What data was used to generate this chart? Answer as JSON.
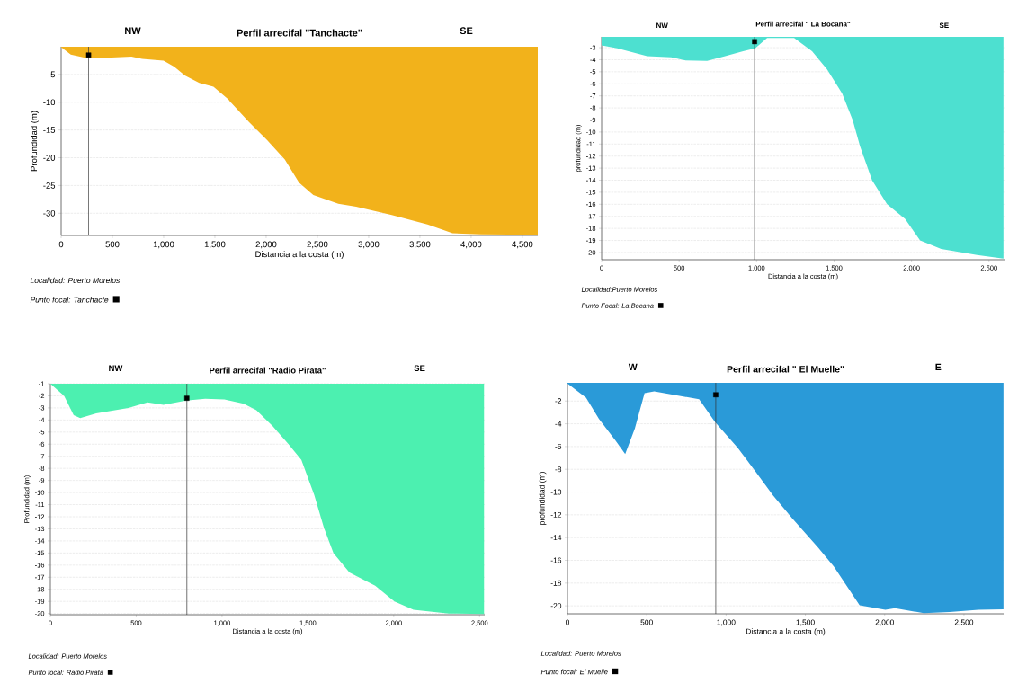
{
  "chart_data": [
    {
      "type": "area",
      "title": "Perfil arrecifal \"Tanchacte\"",
      "xlabel": "Distancia a la costa (m)",
      "ylabel": "Profundidad (m)",
      "annotations": [
        "NW",
        "SE",
        "Localidad: Puerto Morelos"
      ],
      "xlim": [
        0,
        4650
      ],
      "ylim": [
        -34,
        0
      ],
      "grid": "y",
      "legend": "bottom left",
      "xticks": [
        0,
        500,
        {
          "value": 1000,
          "label": "1,000"
        },
        {
          "value": 1500,
          "label": "1,500"
        },
        {
          "value": 2000,
          "label": "2,000"
        },
        {
          "value": 2500,
          "label": "2,500"
        },
        {
          "value": 3000,
          "label": "3,000"
        },
        {
          "value": 3500,
          "label": "3,500"
        },
        {
          "value": 4000,
          "label": "4,000"
        },
        {
          "value": 4500,
          "label": "4,500"
        }
      ],
      "yticks": [
        -5,
        -10,
        -15,
        -20,
        -25,
        -30
      ],
      "ref_lines": [
        {
          "axis": "x",
          "value": 268
        }
      ],
      "series": [
        {
          "color": "#f2b21b",
          "x": [
            0,
            94,
            233,
            442,
            686,
            790,
            999,
            1103,
            1207,
            1347,
            1486,
            1625,
            1834,
            2008,
            2182,
            2321,
            2460,
            2704,
            2878,
            3226,
            3574,
            3818,
            4096,
            4650
          ],
          "values": [
            -0.1,
            -1.4,
            -2.0,
            -2.0,
            -1.8,
            -2.2,
            -2.5,
            -3.6,
            -5.2,
            -6.5,
            -7.2,
            -9.4,
            -13.6,
            -16.8,
            -20.3,
            -24.5,
            -26.7,
            -28.3,
            -28.8,
            -30.3,
            -32.0,
            -33.6,
            -33.8,
            -33.9
          ]
        },
        {
          "type": "scatter",
          "name": "Punto focal: Tanchacte",
          "color": "#000000",
          "marker": "square",
          "x": [
            268
          ],
          "values": [
            -1.5
          ]
        }
      ]
    },
    {
      "type": "area",
      "title": "Perfil arrecifal \" La Bocana\"",
      "xlabel": "Distancia a la costa (m)",
      "ylabel": "profundidad (m)",
      "annotations": [
        "NW",
        "SE",
        "Localidad:Puerto Morelos"
      ],
      "xlim": [
        0,
        2600
      ],
      "ylim": [
        -20.6,
        -2.1
      ],
      "grid": "y",
      "legend": "bottom left",
      "xticks": [
        0,
        500,
        {
          "value": 1000,
          "label": "1,000"
        },
        {
          "value": 1500,
          "label": "1,500"
        },
        {
          "value": 2000,
          "label": "2,000"
        },
        {
          "value": 2500,
          "label": "2,500"
        }
      ],
      "yticks": [
        -3,
        -4,
        -5,
        -6,
        -7,
        -8,
        -9,
        -10,
        -11,
        -12,
        -13,
        -14,
        -15,
        -16,
        -17,
        -18,
        -19,
        -20
      ],
      "ref_lines": [
        {
          "axis": "x",
          "value": 987
        }
      ],
      "series": [
        {
          "color": "#4de0d0",
          "x": [
            0,
            101,
            294,
            449,
            542,
            681,
            797,
            913,
            991,
            1068,
            1107,
            1145,
            1242,
            1358,
            1455,
            1552,
            1620,
            1668,
            1745,
            1842,
            1958,
            2055,
            2191,
            2423,
            2593
          ],
          "values": [
            -2.8,
            -3.05,
            -3.7,
            -3.8,
            -4.05,
            -4.1,
            -3.7,
            -3.3,
            -3.05,
            -2.2,
            null,
            null,
            -2.2,
            -3.3,
            -4.8,
            -6.8,
            -9.0,
            -11.2,
            -14.0,
            -16.0,
            -17.2,
            -19.0,
            -19.7,
            -20.2,
            -20.5
          ]
        },
        {
          "type": "scatter",
          "name": "Punto Focal: La Bocana",
          "color": "#000000",
          "marker": "square",
          "x": [
            987
          ],
          "values": [
            -2.5
          ]
        }
      ]
    },
    {
      "type": "area",
      "title": "Perfil arrecifal \"Radio Pirata\"",
      "xlabel": "Distancia a la costa (m)",
      "ylabel": "Profundidad (m)",
      "annotations": [
        "NW",
        "SE",
        "Localidad: Puerto Morelos"
      ],
      "xlim": [
        0,
        2530
      ],
      "ylim": [
        -20.1,
        -1
      ],
      "grid": "y",
      "legend": "bottom left",
      "xticks": [
        0,
        500,
        {
          "value": 1000,
          "label": "1,000"
        },
        {
          "value": 1500,
          "label": "1,500"
        },
        {
          "value": 2000,
          "label": "2,000"
        },
        {
          "value": 2500,
          "label": "2,500"
        }
      ],
      "yticks": [
        -1,
        -2,
        -3,
        -4,
        -5,
        -6,
        -7,
        -8,
        -9,
        -10,
        -11,
        -12,
        -13,
        -14,
        -15,
        -16,
        -17,
        -18,
        -19,
        -20
      ],
      "ref_lines": [
        {
          "axis": "x",
          "value": 795
        }
      ],
      "series": [
        {
          "color": "#4cf0b0",
          "x": [
            0,
            80,
            136,
            174,
            267,
            454,
            566,
            659,
            790,
            902,
            1014,
            1126,
            1200,
            1294,
            1387,
            1462,
            1537,
            1593,
            1649,
            1742,
            1892,
            2004,
            2115,
            2321,
            2526
          ],
          "values": [
            -1.0,
            -2.0,
            -3.6,
            -3.85,
            -3.45,
            -3.0,
            -2.55,
            -2.75,
            -2.4,
            -2.25,
            -2.3,
            -2.65,
            -3.2,
            -4.5,
            -6.0,
            -7.3,
            -10.2,
            -12.9,
            -15.0,
            -16.6,
            -17.7,
            -19.0,
            -19.7,
            -20.0,
            -20.05
          ]
        },
        {
          "type": "scatter",
          "name": "Punto focal: Radio Pirata",
          "color": "#000000",
          "marker": "square",
          "x": [
            795
          ],
          "values": [
            -2.2
          ]
        }
      ]
    },
    {
      "type": "area",
      "title": "Perfil arrecifal \" El Muelle\"",
      "xlabel": "Distancia a la costa (m)",
      "ylabel": "profundidad (m)",
      "annotations": [
        "W",
        "E",
        "Localidad: Puerto Morelos"
      ],
      "xlim": [
        0,
        2750
      ],
      "ylim": [
        -20.7,
        -0.4
      ],
      "grid": "y",
      "legend": "bottom left",
      "xticks": [
        0,
        500,
        {
          "value": 1000,
          "label": "1,000"
        },
        {
          "value": 1500,
          "label": "1,500"
        },
        {
          "value": 2000,
          "label": "2,000"
        },
        {
          "value": 2500,
          "label": "2,500"
        }
      ],
      "yticks": [
        -2,
        -4,
        -6,
        -8,
        -10,
        -12,
        -14,
        -16,
        -18,
        -20
      ],
      "ref_lines": [
        {
          "axis": "x",
          "value": 935
        }
      ],
      "series": [
        {
          "color": "#2a9ad8",
          "x": [
            0,
            117,
            198,
            304,
            364,
            425,
            486,
            547,
            830,
            931,
            1073,
            1194,
            1296,
            1417,
            1579,
            1680,
            1842,
            2004,
            2065,
            2247,
            2409,
            2591,
            2749
          ],
          "values": [
            -0.45,
            -1.7,
            -3.55,
            -5.5,
            -6.65,
            -4.4,
            -1.3,
            -1.15,
            -1.85,
            -3.85,
            -6.1,
            -8.35,
            -10.3,
            -12.3,
            -14.85,
            -16.55,
            -19.95,
            -20.35,
            -20.2,
            -20.65,
            -20.55,
            -20.35,
            -20.3
          ]
        },
        {
          "type": "scatter",
          "name": "Punto focal: El Muelle",
          "color": "#000000",
          "marker": "square",
          "x": [
            935
          ],
          "values": [
            -1.45
          ]
        }
      ]
    }
  ]
}
